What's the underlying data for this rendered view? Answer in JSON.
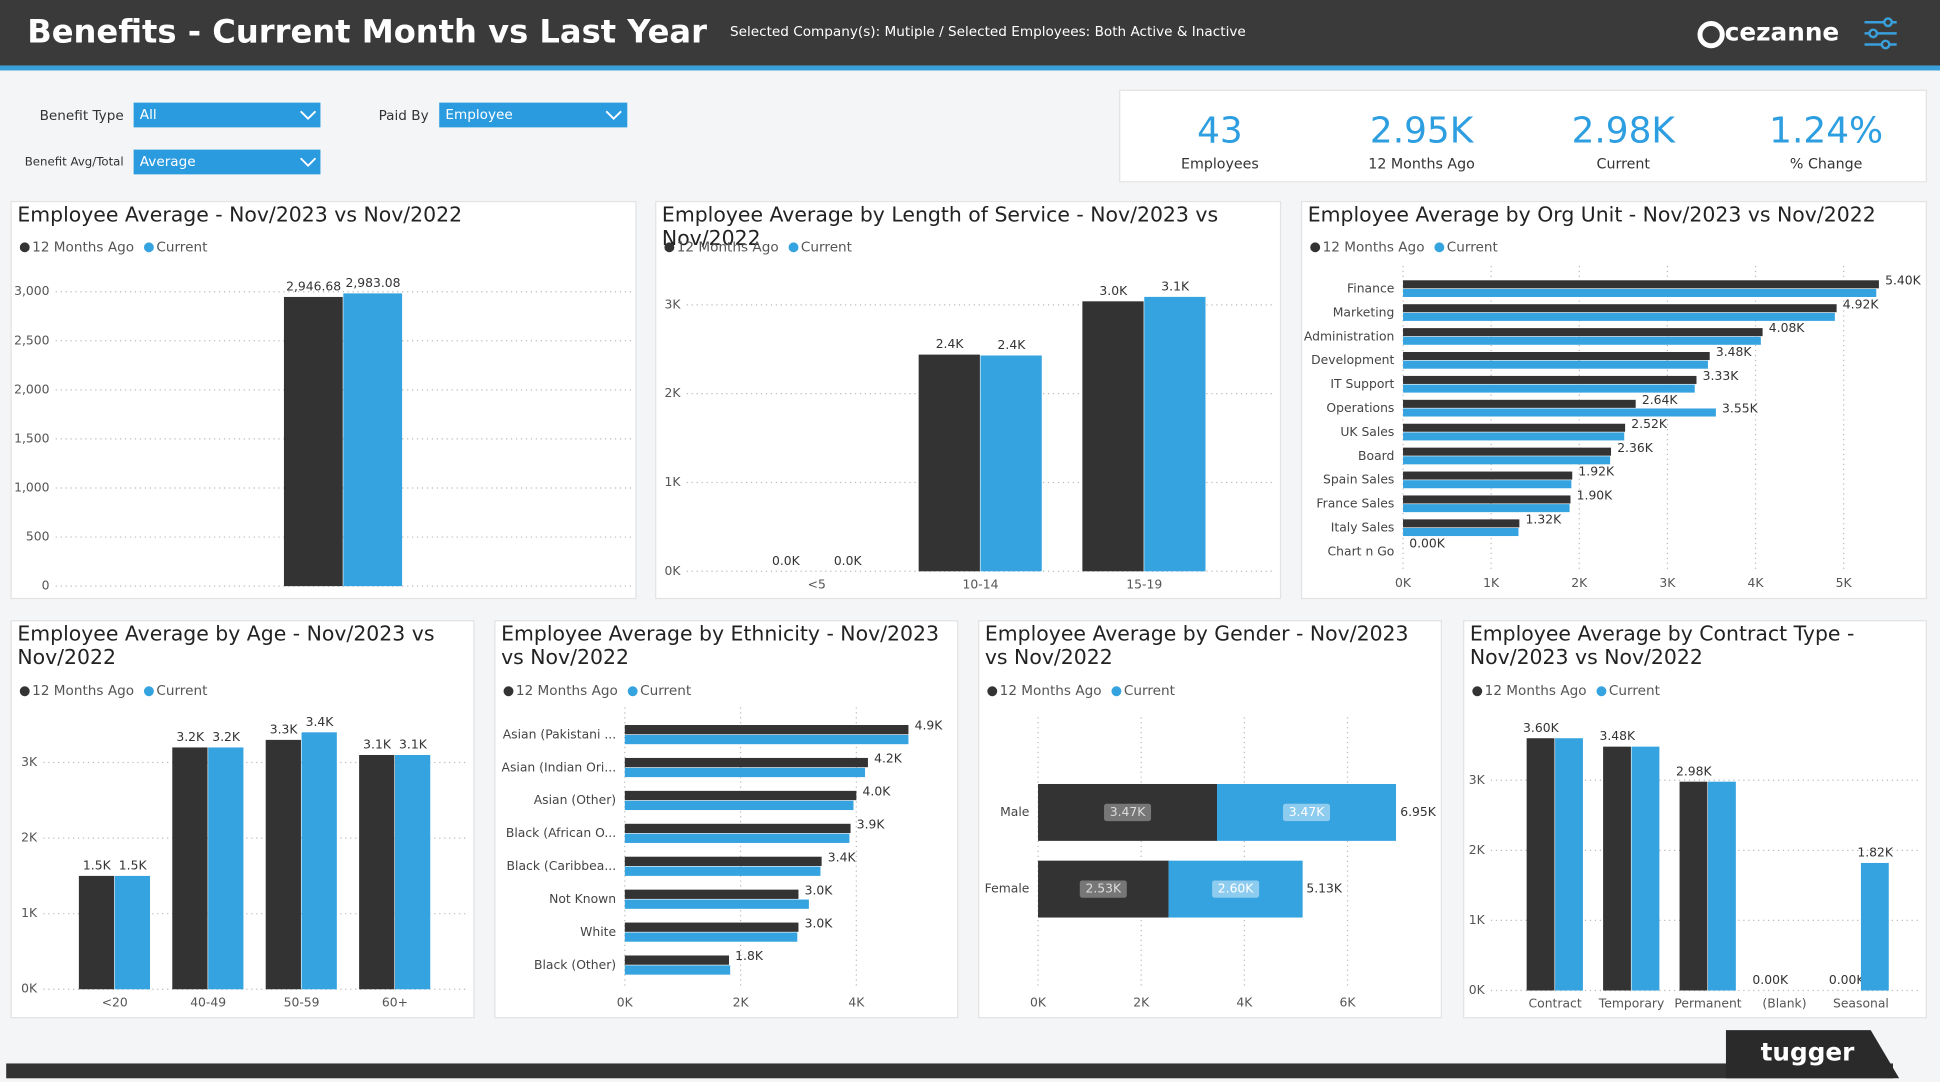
{
  "header": {
    "title": "Benefits - Current Month vs Last Year",
    "subtitle": "Selected Company(s): Mutiple / Selected Employees: Both Active & Inactive",
    "brand": "cezanne",
    "footer_brand": "tugger"
  },
  "filters": [
    {
      "label": "Benefit Type",
      "value": "All"
    },
    {
      "label": "Paid By",
      "value": "Employee"
    },
    {
      "label": "Benefit Avg/Total",
      "value": "Average"
    }
  ],
  "kpis": [
    {
      "value": "43",
      "label": "Employees"
    },
    {
      "value": "2.95K",
      "label": "12 Months Ago"
    },
    {
      "value": "2.98K",
      "label": "Current"
    },
    {
      "value": "1.24%",
      "label": "% Change"
    }
  ],
  "chart_data": [
    {
      "type": "bar",
      "title": "Employee Average - Nov/2023 vs Nov/2022",
      "categories": [
        null
      ],
      "series": [
        {
          "name": "12 Months Ago",
          "color": "#333333",
          "values": [
            2946.68
          ],
          "value_labels": [
            "2,946.68"
          ]
        },
        {
          "name": "Current",
          "color": "#35a3df",
          "values": [
            2983.08
          ],
          "value_labels": [
            "2,983.08"
          ]
        }
      ],
      "ylim": [
        0,
        3150
      ],
      "yticks": [
        0,
        500,
        {
          "value": 1000,
          "label": "1,000"
        },
        {
          "value": 1500,
          "label": "1,500"
        },
        {
          "value": 2000,
          "label": "2,000"
        },
        {
          "value": 2500,
          "label": "2,500"
        },
        {
          "value": 3000,
          "label": "3,000"
        }
      ],
      "grid": true
    },
    {
      "type": "bar",
      "title": "Employee Average by Length of Service - Nov/2023 vs Nov/2022",
      "categories": [
        "<5",
        "10-14",
        "15-19"
      ],
      "series": [
        {
          "name": "12 Months Ago",
          "color": "#333333",
          "values": [
            0,
            2440,
            3040
          ],
          "value_labels": [
            "0.0K",
            "2.4K",
            "3.0K"
          ]
        },
        {
          "name": "Current",
          "color": "#35a3df",
          "values": [
            0,
            2430,
            3090
          ],
          "value_labels": [
            "0.0K",
            "2.4K",
            "3.1K"
          ]
        }
      ],
      "ylim": [
        0,
        3300
      ],
      "yticks": [
        {
          "value": 0,
          "label": "0K"
        },
        {
          "value": 1000,
          "label": "1K"
        },
        {
          "value": 2000,
          "label": "2K"
        },
        {
          "value": 3000,
          "label": "3K"
        }
      ],
      "grid": true
    },
    {
      "type": "bar",
      "orientation": "horizontal",
      "title": "Employee Average by Org Unit - Nov/2023 vs Nov/2022",
      "categories": [
        "Finance",
        "Marketing",
        "Administration",
        "Development",
        "IT Support",
        "Operations",
        "UK Sales",
        "Board",
        "Spain Sales",
        "France Sales",
        "Italy Sales",
        "Chart n Go"
      ],
      "series": [
        {
          "name": "12 Months Ago",
          "color": "#333333",
          "values": [
            5400,
            4920,
            4080,
            3480,
            3330,
            2640,
            2520,
            2360,
            1920,
            1900,
            1320,
            0
          ],
          "value_labels": [
            "5.40K",
            "4.92K",
            "4.08K",
            "3.48K",
            "3.33K",
            "2.64K",
            "2.52K",
            "2.36K",
            "1.92K",
            "1.90K",
            "1.32K",
            "0.00K"
          ]
        },
        {
          "name": "Current",
          "color": "#35a3df",
          "values": [
            5370,
            4900,
            4060,
            3460,
            3310,
            3550,
            2510,
            2350,
            1910,
            1890,
            1310,
            0
          ],
          "value_labels": [
            null,
            null,
            null,
            null,
            null,
            "3.55K",
            null,
            null,
            null,
            null,
            null,
            null
          ]
        }
      ],
      "xlim": [
        0,
        5700
      ],
      "xticks": [
        {
          "value": 0,
          "label": "0K"
        },
        {
          "value": 1000,
          "label": "1K"
        },
        {
          "value": 2000,
          "label": "2K"
        },
        {
          "value": 3000,
          "label": "3K"
        },
        {
          "value": 4000,
          "label": "4K"
        },
        {
          "value": 5000,
          "label": "5K"
        }
      ],
      "grid": true
    },
    {
      "type": "bar",
      "title": "Employee Average by Age - Nov/2023 vs Nov/2022",
      "categories": [
        "<20",
        "40-49",
        "50-59",
        "60+"
      ],
      "series": [
        {
          "name": "12 Months Ago",
          "color": "#333333",
          "values": [
            1500,
            3200,
            3300,
            3100
          ],
          "value_labels": [
            "1.5K",
            "3.2K",
            "3.3K",
            "3.1K"
          ]
        },
        {
          "name": "Current",
          "color": "#35a3df",
          "values": [
            1500,
            3200,
            3400,
            3100
          ],
          "value_labels": [
            "1.5K",
            "3.2K",
            "3.4K",
            "3.1K"
          ]
        }
      ],
      "ylim": [
        0,
        3600
      ],
      "yticks": [
        {
          "value": 0,
          "label": "0K"
        },
        {
          "value": 1000,
          "label": "1K"
        },
        {
          "value": 2000,
          "label": "2K"
        },
        {
          "value": 3000,
          "label": "3K"
        }
      ],
      "grid": true
    },
    {
      "type": "bar",
      "orientation": "horizontal",
      "title": "Employee Average by Ethnicity - Nov/2023 vs Nov/2022",
      "categories": [
        "Asian (Pakistani ...",
        "Asian (Indian Ori...",
        "Asian (Other)",
        "Black (African O...",
        "Black (Caribbea...",
        "Not Known",
        "White",
        "Black (Other)"
      ],
      "series": [
        {
          "name": "12 Months Ago",
          "color": "#333333",
          "values": [
            4900,
            4200,
            4000,
            3900,
            3400,
            3000,
            3000,
            1800
          ],
          "value_labels": [
            "4.9K",
            "4.2K",
            "4.0K",
            "3.9K",
            "3.4K",
            "3.0K",
            "3.0K",
            "1.8K"
          ]
        },
        {
          "name": "Current",
          "color": "#35a3df",
          "values": [
            4900,
            4150,
            3950,
            3880,
            3380,
            3180,
            2980,
            1820
          ]
        }
      ],
      "xlim": [
        0,
        5600
      ],
      "xticks": [
        {
          "value": 0,
          "label": "0K"
        },
        {
          "value": 2000,
          "label": "2K"
        },
        {
          "value": 4000,
          "label": "4K"
        }
      ],
      "grid": true
    },
    {
      "type": "bar",
      "orientation": "horizontal",
      "stacked": true,
      "title": "Employee Average by Gender - Nov/2023 vs Nov/2022",
      "categories": [
        "Male",
        "Female"
      ],
      "series": [
        {
          "name": "12 Months Ago",
          "color": "#333333",
          "values": [
            3470,
            2530
          ],
          "value_labels": [
            "3.47K",
            "2.53K"
          ]
        },
        {
          "name": "Current",
          "color": "#35a3df",
          "values": [
            3470,
            2600
          ],
          "value_labels": [
            "3.47K",
            "2.60K"
          ]
        }
      ],
      "totals": [
        6950,
        5130
      ],
      "total_labels": [
        "6.95K",
        "5.13K"
      ],
      "xlim": [
        0,
        7700
      ],
      "xticks": [
        {
          "value": 0,
          "label": "0K"
        },
        {
          "value": 2000,
          "label": "2K"
        },
        {
          "value": 4000,
          "label": "4K"
        },
        {
          "value": 6000,
          "label": "6K"
        }
      ],
      "grid": true
    },
    {
      "type": "bar",
      "title": "Employee Average by Contract Type - Nov/2023 vs Nov/2022",
      "categories": [
        "Contract",
        "Temporary",
        "Permanent",
        "(Blank)",
        "Seasonal"
      ],
      "series": [
        {
          "name": "12 Months Ago",
          "color": "#333333",
          "values": [
            3600,
            3480,
            2980,
            0,
            0
          ],
          "value_labels": [
            "3.60K",
            "3.48K",
            "2.98K",
            "0.00K",
            "0.00K"
          ]
        },
        {
          "name": "Current",
          "color": "#35a3df",
          "values": [
            3600,
            3480,
            2980,
            0,
            1820
          ],
          "value_labels": [
            null,
            null,
            null,
            null,
            "1.82K"
          ]
        }
      ],
      "ylim": [
        0,
        3900
      ],
      "yticks": [
        {
          "value": 0,
          "label": "0K"
        },
        {
          "value": 1000,
          "label": "1K"
        },
        {
          "value": 2000,
          "label": "2K"
        },
        {
          "value": 3000,
          "label": "3K"
        }
      ],
      "grid": true
    }
  ]
}
